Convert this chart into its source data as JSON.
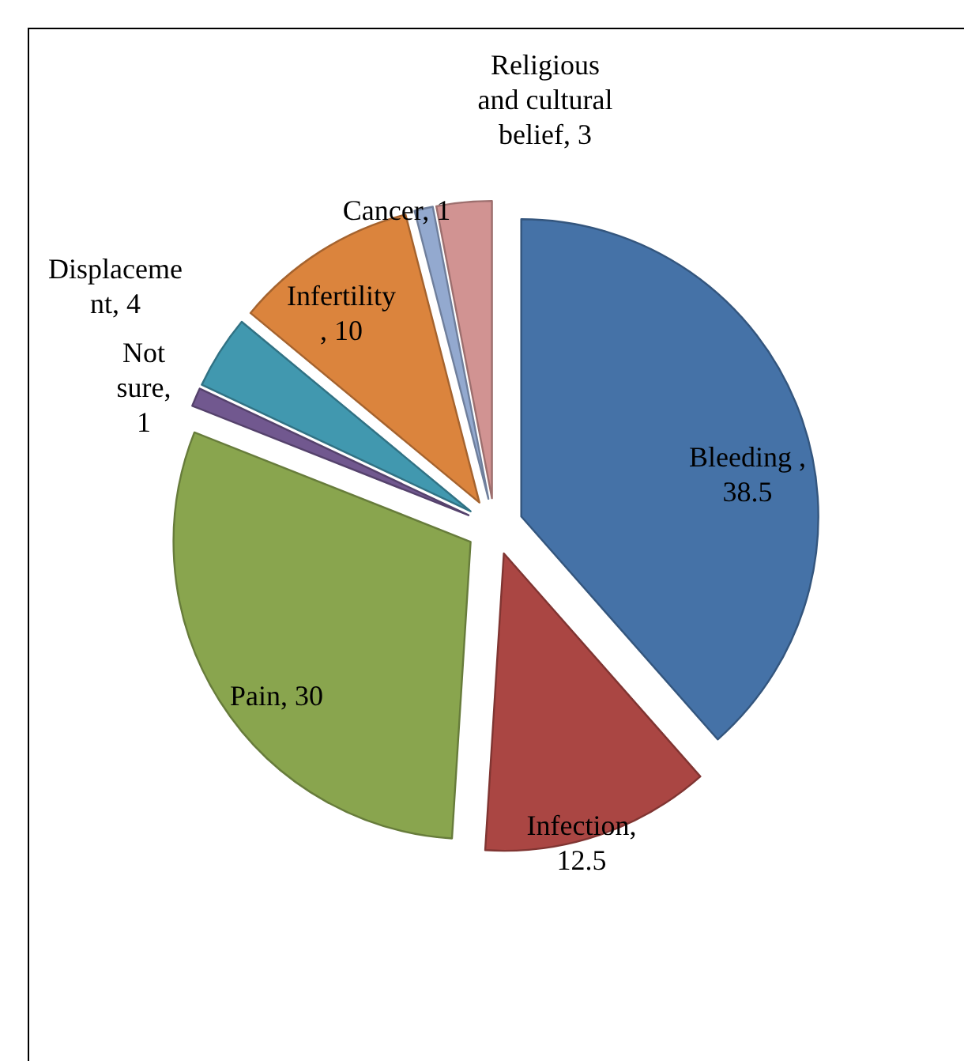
{
  "chart_data": {
    "type": "pie",
    "categories": [
      "Bleeding",
      "Infection",
      "Pain",
      "Not sure",
      "Displacement",
      "Infertility",
      "Cancer",
      "Religious and cultural belief"
    ],
    "values": [
      38.5,
      12.5,
      30,
      1,
      4,
      10,
      1,
      3
    ],
    "colors": [
      "#4572a7",
      "#aa4643",
      "#89a54e",
      "#71588f",
      "#4198af",
      "#db843d",
      "#93a9cf",
      "#d19392"
    ],
    "value_labels": [
      " , 38.5",
      ", 12.5",
      ", 30",
      ", 1",
      ", 4",
      " , 10",
      ", 1",
      ", 3"
    ]
  }
}
